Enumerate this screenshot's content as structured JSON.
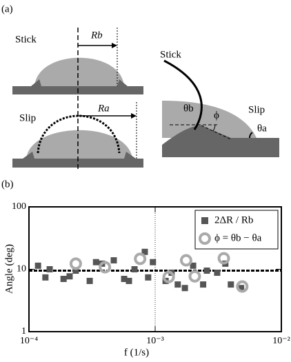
{
  "diagram": {
    "panel_label": "(a)",
    "stick_left": "Stick",
    "r_b": "Rb",
    "slip_left": "Slip",
    "r_a": "Ra",
    "stick_right": "Stick",
    "theta_b": "θb",
    "phi": "ϕ",
    "slip_right": "Slip",
    "theta_a": "θa"
  },
  "chart_data": {
    "type": "scatter",
    "panel_label": "(b)",
    "x_label": "f (1/s)",
    "y_label": "Angle (deg)",
    "xlim": [
      0.0001,
      0.01
    ],
    "ylim": [
      1,
      100
    ],
    "log_x": true,
    "log_y": true,
    "xticks": [
      {
        "value": 0.0001,
        "label": "10⁻⁴"
      },
      {
        "value": 0.001,
        "label": "10⁻³"
      },
      {
        "value": 0.01,
        "label": "10⁻²"
      }
    ],
    "yticks": [
      1,
      10,
      100
    ],
    "hline": 9.5,
    "vline": 0.001,
    "legend": "upper right",
    "series": [
      {
        "name": "2ΔR / Rb",
        "color": "#555555",
        "marker": "square",
        "x": [
          0.000118,
          0.000146,
          0.000188,
          0.000235,
          0.000303,
          0.000379,
          0.00047,
          0.000568,
          0.000686,
          0.000828,
          0.00096,
          0.00121,
          0.00151,
          0.00172,
          0.002,
          0.00257,
          0.0031,
          0.00398,
          0.0048,
          0.000135,
          0.00021,
          0.00034,
          0.00062,
          0.00088,
          0.00135,
          0.0024,
          0.0036
        ],
        "values": [
          11.4,
          10,
          7,
          9.5,
          6.5,
          12.3,
          13.9,
          7,
          10,
          19,
          13,
          6.5,
          5.7,
          5,
          11.4,
          9.5,
          8.8,
          5.7,
          5,
          7.4,
          7.7,
          13,
          6.5,
          7.4,
          8.8,
          5.7,
          12.3
        ]
      },
      {
        "name": "ϕ = θb − θa",
        "color": "#aaaaaa",
        "marker": "ring",
        "x": [
          0.000235,
          0.0004,
          0.00076,
          0.00128,
          0.00176,
          0.00206,
          0.0035,
          0.0049
        ],
        "values": [
          12.3,
          10.8,
          14.7,
          7.5,
          13.9,
          7.7,
          15,
          5.3
        ]
      }
    ]
  }
}
